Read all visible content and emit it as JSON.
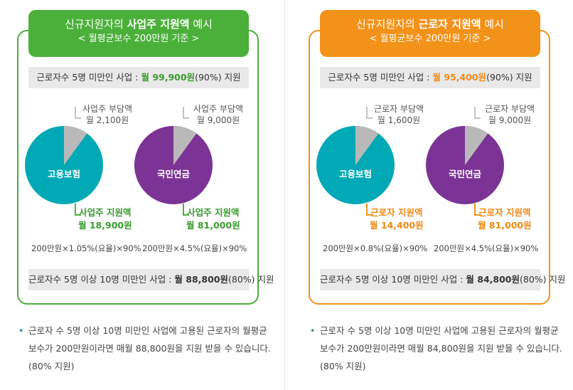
{
  "colors": {
    "left_accent": "#4bb03a",
    "right_accent": "#f39219",
    "teal": "#00a9b5",
    "purple": "#7b3495",
    "gray_slice": "#b9b9b9",
    "amount_green": "#3a9b2f",
    "amount_orange": "#f08a14"
  },
  "left": {
    "header_pre": "신규지원자의 ",
    "header_bold": "사업주 지원액",
    "header_post": " 예시",
    "header_sub": "< 월평균보수 200만원 기준 >",
    "top_bar_pre": "근로자수 5명 미만인 사업 : ",
    "top_bar_amount": "월 99,900원",
    "top_bar_post": "(90%) 지원",
    "pie1": {
      "label": "고용보험",
      "slice_fraction": 0.1,
      "top_line1": "사업주 부담액",
      "top_line2": "월 2,100원",
      "bottom_line1": "사업주 지원액",
      "bottom_line2": "월 18,900원",
      "formula": "200만원×1.05%(요율)×90%"
    },
    "pie2": {
      "label": "국민연금",
      "slice_fraction": 0.1,
      "top_line1": "사업주 부담액",
      "top_line2": "월 9,000원",
      "bottom_line1": "사업주 지원액",
      "bottom_line2": "월 81,000원",
      "formula": "200만원×4.5%(요율)×90%"
    },
    "bottom_bar_pre": "근로자수 5명 이상 10명 미만인 사업 : ",
    "bottom_bar_amount": "월 88,800원",
    "bottom_bar_post": "(80%) 지원",
    "note_line1": "근로자 수 5명 이상 10명 미만인 사업에 고용된 근로자의 월평균",
    "note_line2": "보수가 200만원이라면 매월 88,800원을 지원 받을 수 있습니다.",
    "note_line3": "(80% 지원)"
  },
  "right": {
    "header_pre": "신규지원자의 ",
    "header_bold": "근로자 지원액",
    "header_post": " 예시",
    "header_sub": "< 월평균보수 200만원 기준 >",
    "top_bar_pre": "근로자수 5명 미만인 사업 : ",
    "top_bar_amount": "월 95,400원",
    "top_bar_post": "(90%) 지원",
    "pie1": {
      "label": "고용보험",
      "slice_fraction": 0.1,
      "top_line1": "근로자 부담액",
      "top_line2": "월 1,600원",
      "bottom_line1": "근로자 지원액",
      "bottom_line2": "월 14,400원",
      "formula": "200만원×0.8%(요율)×90%"
    },
    "pie2": {
      "label": "국민연금",
      "slice_fraction": 0.1,
      "top_line1": "근로자 부담액",
      "top_line2": "월 9,000원",
      "bottom_line1": "근로자 지원액",
      "bottom_line2": "월 81,000원",
      "formula": "200만원×4.5%(요율)×90%"
    },
    "bottom_bar_pre": "근로자수 5명 이상 10명 미만인 사업 : ",
    "bottom_bar_amount": "월 84,800원",
    "bottom_bar_post": "(80%) 지원",
    "note_line1": "근로자 수 5명 이상 10명 미만인 사업에 고용된 근로자의 월평균",
    "note_line2": "보수가 200만원이라면 매월 84,800원을 지원 받을 수 있습니다.",
    "note_line3": "(80% 지원)"
  }
}
